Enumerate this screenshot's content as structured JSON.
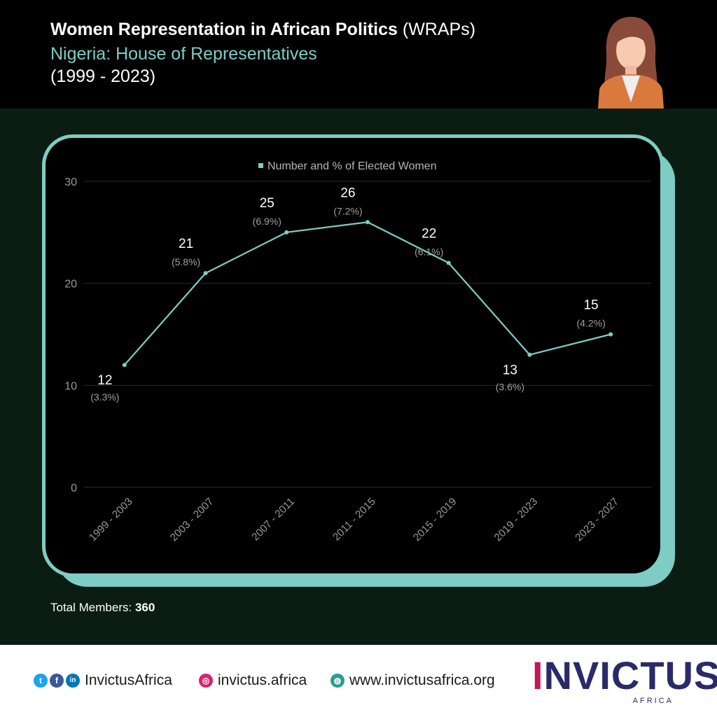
{
  "header": {
    "title_bold": "Women Representation in African Politics",
    "title_tag": "(WRAPs)",
    "subtitle": "Nigeria: House of Representatives",
    "years": "(1999 - 2023)"
  },
  "chart_data": {
    "type": "line",
    "legend": "Number and % of Elected Women",
    "legend_position": "top-center",
    "categories": [
      "1999 - 2003",
      "2003 - 2007",
      "2007 - 2011",
      "2011 - 2015",
      "2015 - 2019",
      "2019 - 2023",
      "2023 - 2027"
    ],
    "series": [
      {
        "name": "Number and % of Elected Women",
        "values": [
          12,
          21,
          25,
          26,
          22,
          13,
          15
        ],
        "percent_labels": [
          "(3.3%)",
          "(5.8%)",
          "(6.9%)",
          "(7.2%)",
          "(6.1%)",
          "(3.6%)",
          "(4.2%)"
        ]
      }
    ],
    "yticks": [
      0,
      10,
      20,
      30
    ],
    "ylim": [
      0,
      30
    ],
    "grid": true,
    "line_color": "#7ecdc4"
  },
  "footer": {
    "total_label": "Total Members:",
    "total_value": "360",
    "social_handle": "InvictusAfrica",
    "instagram": "invictus.africa",
    "website": "www.invictusafrica.org",
    "logo_text": "INVICTUS",
    "logo_sub": "AFRICA"
  },
  "colors": {
    "accent": "#7ecdc4",
    "brand": "#2a2a6a",
    "brand_pink": "#c2185b"
  }
}
